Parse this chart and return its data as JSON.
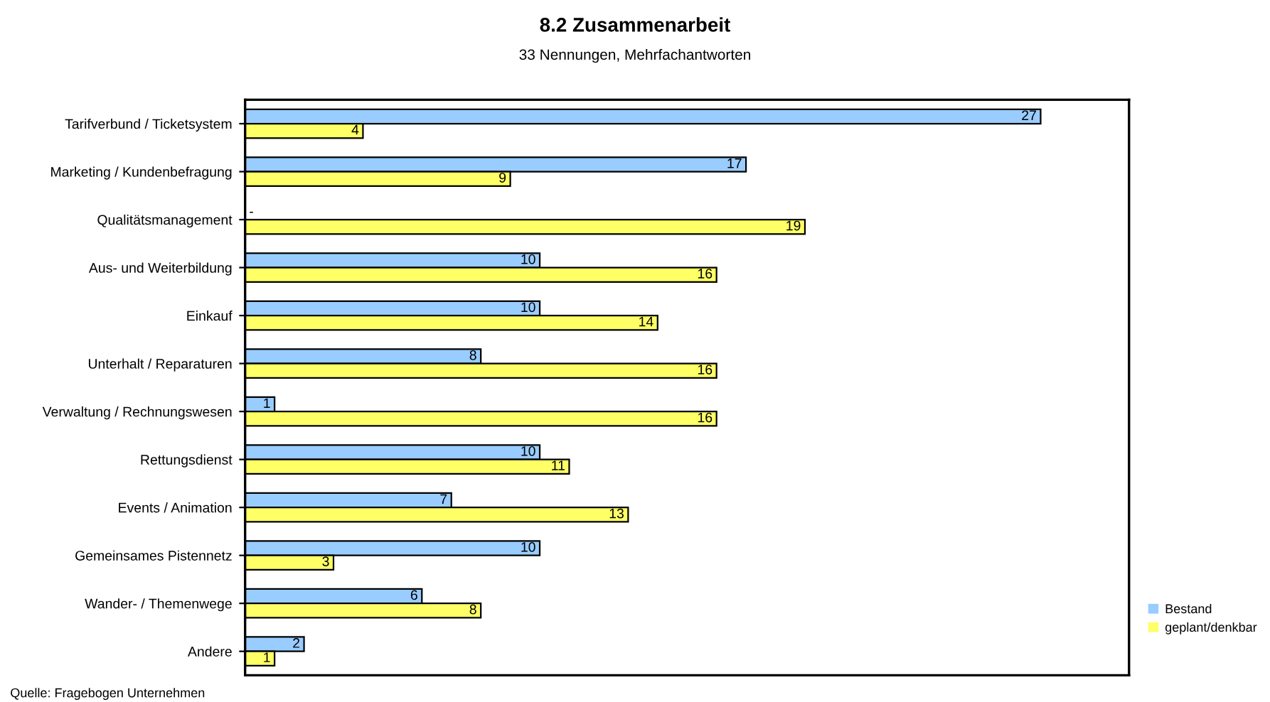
{
  "chart_data": {
    "type": "bar",
    "orientation": "horizontal",
    "title": "8.2 Zusammenarbeit",
    "subtitle": "33 Nennungen, Mehrfachantworten",
    "categories": [
      "Tarifverbund / Ticketsystem",
      "Marketing / Kundenbefragung",
      "Qualitätsmanagement",
      "Aus- und Weiterbildung",
      "Einkauf",
      "Unterhalt / Reparaturen",
      "Verwaltung / Rechnungswesen",
      "Rettungsdienst",
      "Events / Animation",
      "Gemeinsames Pistennetz",
      "Wander- / Themenwege",
      "Andere"
    ],
    "series": [
      {
        "name": "Bestand",
        "color": "#99ccff",
        "values": [
          27,
          17,
          0,
          10,
          10,
          8,
          1,
          10,
          7,
          10,
          6,
          2
        ],
        "value_labels": [
          "27",
          "17",
          "-",
          "10",
          "10",
          "8",
          "1",
          "10",
          "7",
          "10",
          "6",
          "2"
        ]
      },
      {
        "name": "geplant/denkbar",
        "color": "#ffff66",
        "values": [
          4,
          9,
          19,
          16,
          14,
          16,
          16,
          11,
          13,
          3,
          8,
          1
        ],
        "value_labels": [
          "4",
          "9",
          "19",
          "16",
          "14",
          "16",
          "16",
          "11",
          "13",
          "3",
          "8",
          "1"
        ]
      }
    ],
    "xlim": [
      0,
      30
    ],
    "tick_labels": "y",
    "grid": false,
    "legend": "bottom right",
    "annotations": [
      "Quelle: Fragebogen Unternehmen"
    ]
  }
}
